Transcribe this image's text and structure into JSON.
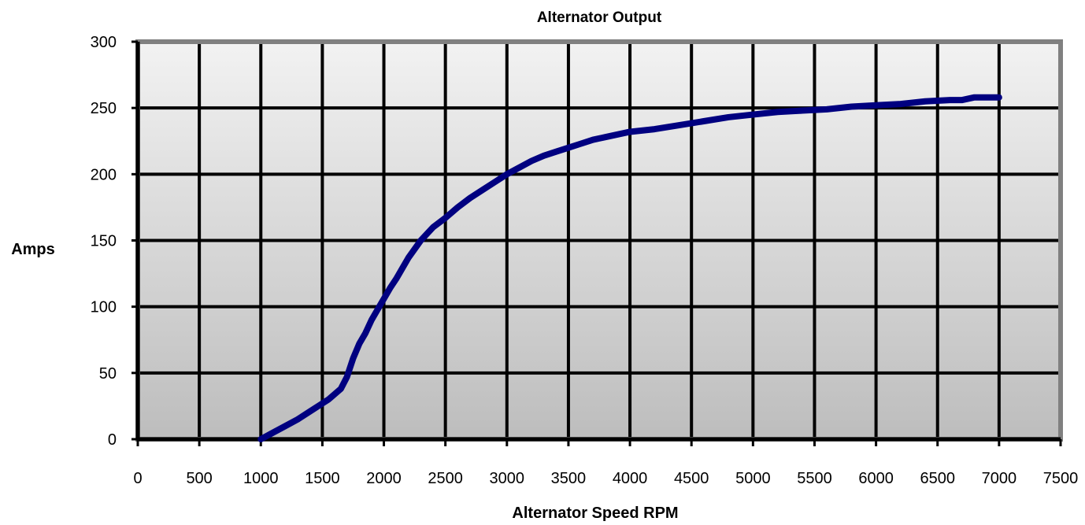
{
  "chart_data": {
    "type": "line",
    "title": "Alternator Output",
    "xlabel": "Alternator Speed RPM",
    "ylabel": "Amps",
    "xlim": [
      0,
      7500
    ],
    "ylim": [
      0,
      300
    ],
    "x_ticks": [
      0,
      500,
      1000,
      1500,
      2000,
      2500,
      3000,
      3500,
      4000,
      4500,
      5000,
      5500,
      6000,
      6500,
      7000,
      7500
    ],
    "y_ticks": [
      0,
      50,
      100,
      150,
      200,
      250,
      300
    ],
    "grid": true,
    "legend": "none",
    "colors": {
      "line": "#000080",
      "plot_top": "#f2f2f2",
      "plot_bottom": "#bdbdbd",
      "frame": "#808080",
      "grid": "#000000"
    },
    "series": [
      {
        "x": [
          1000,
          1100,
          1200,
          1300,
          1400,
          1500,
          1550,
          1600,
          1650,
          1700,
          1750,
          1800,
          1850,
          1900,
          1950,
          2000,
          2050,
          2100,
          2200,
          2300,
          2400,
          2500,
          2600,
          2700,
          2800,
          2900,
          3000,
          3100,
          3200,
          3300,
          3400,
          3500,
          3600,
          3700,
          3800,
          3900,
          4000,
          4200,
          4400,
          4600,
          4800,
          5000,
          5200,
          5400,
          5600,
          5800,
          6000,
          6200,
          6400,
          6600,
          6700,
          6800,
          6900,
          7000
        ],
        "values": [
          0,
          5,
          10,
          15,
          21,
          27,
          30,
          34,
          38,
          47,
          61,
          72,
          80,
          90,
          98,
          106,
          114,
          121,
          137,
          150,
          160,
          167,
          175,
          182,
          188,
          194,
          200,
          205,
          210,
          214,
          217,
          220,
          223,
          226,
          228,
          230,
          232,
          234,
          237,
          240,
          243,
          245,
          247,
          248,
          249,
          251,
          252,
          253,
          255,
          256,
          256,
          258,
          258,
          258
        ]
      }
    ]
  }
}
